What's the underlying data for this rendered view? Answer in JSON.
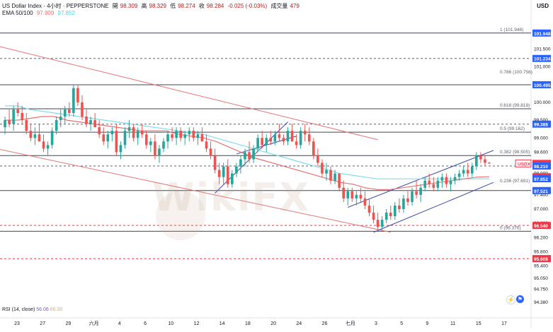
{
  "header": {
    "symbol": "US Dollar Index · 4小时 · PEPPERSTONE",
    "open_label": "開",
    "open": "98.309",
    "high_label": "高",
    "high": "98.329",
    "low_label": "低",
    "low": "98.274",
    "close_label": "收",
    "close": "98.284",
    "change": "-0.025 (-0.03%)",
    "volume_label": "成交量",
    "volume": "479",
    "ema_label": "EMA 50/100",
    "ema50": "97.909",
    "ema100": "97.852"
  },
  "axis": {
    "currency": "USD"
  },
  "rsi": {
    "label": "RSI (14, close)",
    "value": "56.06",
    "sma": "66.00"
  },
  "watermark": "WikiFX",
  "colors": {
    "up": "#26a69a",
    "down": "#ef5350",
    "ema50": "#e57373",
    "ema100": "#80deea",
    "channel_red": "#e57373",
    "channel_blue": "#3949ab",
    "badge_blue": "#2962ff",
    "badge_red": "#f23645",
    "fib_line": "#131722"
  },
  "chart_data": {
    "type": "candlestick",
    "y_axis": {
      "range": [
        94.3,
        102.4
      ],
      "scale": "linear"
    },
    "y_ticks": [
      "101.500",
      "101.000",
      "100.500",
      "100.000",
      "99.500",
      "99.000",
      "98.600",
      "98.000",
      "97.400",
      "97.000",
      "96.600",
      "96.200",
      "95.800",
      "95.400",
      "95.050",
      "94.750",
      "94.380"
    ],
    "x_ticks": [
      "23",
      "27",
      "29",
      "六月",
      "4",
      "6",
      "10",
      "12",
      "14",
      "18",
      "20",
      "24",
      "26",
      "七月",
      "3",
      "5",
      "9",
      "11",
      "15",
      "17"
    ],
    "price_badges": [
      {
        "label": "101.948",
        "value": 101.948,
        "color": "blue"
      },
      {
        "label": "101.234",
        "value": 101.234,
        "color": "blue"
      },
      {
        "label": "100.495",
        "value": 100.495,
        "color": "blue"
      },
      {
        "label": "99.388",
        "value": 99.388,
        "color": "blue"
      },
      {
        "label": "98.284",
        "value": 98.284,
        "color": "red"
      },
      {
        "label": "98.210",
        "value": 98.21,
        "color": "blue"
      },
      {
        "label": "97.909",
        "value": 97.909,
        "color": "red"
      },
      {
        "label": "97.852",
        "value": 97.852,
        "color": "blue"
      },
      {
        "label": "97.521",
        "value": 97.521,
        "color": "blue"
      },
      {
        "label": "96.540",
        "value": 96.54,
        "color": "red"
      },
      {
        "label": "95.608",
        "value": 95.608,
        "color": "red"
      }
    ],
    "symbol_badge": "USDX",
    "fib_levels": [
      {
        "label": "1 (101.948)",
        "value": 101.948
      },
      {
        "label": "0.786 (100.756)",
        "value": 100.756
      },
      {
        "label": "0.618 (99.819)",
        "value": 99.819
      },
      {
        "label": "0.5 (99.162)",
        "value": 99.162
      },
      {
        "label": "0.382 (98.505)",
        "value": 98.505
      },
      {
        "label": "0.236 (97.691)",
        "value": 97.691
      },
      {
        "label": "0 (96.376)",
        "value": 96.376
      }
    ],
    "horizontal_lines": [
      {
        "value": 101.948,
        "style": "solid"
      },
      {
        "value": 101.234,
        "style": "dashed"
      },
      {
        "value": 100.495,
        "style": "solid"
      },
      {
        "value": 99.819,
        "style": "solid"
      },
      {
        "value": 99.388,
        "style": "dashed"
      },
      {
        "value": 99.162,
        "style": "solid"
      },
      {
        "value": 98.505,
        "style": "solid"
      },
      {
        "value": 98.21,
        "style": "dashed"
      },
      {
        "value": 97.521,
        "style": "solid"
      },
      {
        "value": 96.54,
        "style": "dashed_red"
      },
      {
        "value": 96.376,
        "style": "solid"
      },
      {
        "value": 95.608,
        "style": "dashed_red"
      }
    ],
    "ohlc": [
      [
        99.3,
        99.6,
        99.1,
        99.5
      ],
      [
        99.5,
        99.8,
        99.3,
        99.4
      ],
      [
        99.4,
        99.9,
        99.2,
        99.8
      ],
      [
        99.8,
        100.0,
        99.6,
        99.7
      ],
      [
        99.7,
        99.9,
        99.4,
        99.5
      ],
      [
        99.5,
        99.7,
        99.1,
        99.2
      ],
      [
        99.2,
        99.4,
        98.9,
        99.0
      ],
      [
        99.0,
        99.3,
        98.8,
        99.1
      ],
      [
        99.1,
        99.4,
        98.9,
        98.9
      ],
      [
        98.9,
        99.1,
        98.6,
        98.7
      ],
      [
        98.7,
        98.9,
        98.5,
        98.8
      ],
      [
        98.8,
        99.3,
        98.7,
        99.2
      ],
      [
        99.2,
        99.6,
        99.1,
        99.5
      ],
      [
        99.5,
        99.8,
        99.3,
        99.6
      ],
      [
        99.6,
        99.9,
        99.4,
        99.8
      ],
      [
        99.8,
        100.0,
        99.6,
        99.7
      ],
      [
        99.7,
        100.5,
        99.6,
        100.4
      ],
      [
        100.4,
        100.5,
        99.9,
        100.0
      ],
      [
        100.0,
        100.2,
        99.5,
        99.6
      ],
      [
        99.6,
        99.8,
        99.3,
        99.4
      ],
      [
        99.4,
        99.6,
        99.2,
        99.5
      ],
      [
        99.5,
        99.7,
        99.3,
        99.3
      ],
      [
        99.3,
        99.5,
        99.0,
        99.1
      ],
      [
        99.1,
        99.3,
        98.8,
        98.9
      ],
      [
        98.9,
        99.2,
        98.7,
        99.1
      ],
      [
        99.1,
        99.3,
        98.9,
        99.2
      ],
      [
        99.2,
        99.4,
        98.5,
        98.6
      ],
      [
        98.6,
        98.9,
        98.4,
        98.8
      ],
      [
        98.8,
        99.3,
        98.7,
        99.2
      ],
      [
        99.2,
        99.5,
        99.0,
        99.3
      ],
      [
        99.3,
        99.4,
        98.9,
        99.0
      ],
      [
        99.0,
        99.3,
        98.8,
        99.2
      ],
      [
        99.2,
        99.4,
        99.0,
        99.1
      ],
      [
        99.1,
        99.2,
        98.7,
        98.8
      ],
      [
        98.8,
        99.0,
        98.6,
        98.9
      ],
      [
        98.9,
        99.1,
        98.4,
        98.5
      ],
      [
        98.5,
        98.8,
        98.3,
        98.7
      ],
      [
        98.7,
        99.0,
        98.6,
        98.9
      ],
      [
        98.9,
        99.2,
        98.7,
        99.1
      ],
      [
        99.1,
        99.3,
        98.9,
        99.0
      ],
      [
        99.0,
        99.3,
        98.8,
        99.2
      ],
      [
        99.2,
        99.3,
        98.9,
        99.0
      ],
      [
        99.0,
        99.2,
        98.8,
        99.1
      ],
      [
        99.1,
        99.3,
        98.9,
        99.2
      ],
      [
        99.2,
        99.3,
        98.9,
        99.0
      ],
      [
        99.0,
        99.2,
        98.8,
        99.1
      ],
      [
        99.1,
        99.3,
        98.9,
        98.9
      ],
      [
        98.9,
        99.1,
        98.6,
        98.7
      ],
      [
        98.7,
        98.9,
        98.4,
        98.5
      ],
      [
        98.5,
        98.7,
        98.0,
        98.1
      ],
      [
        98.1,
        98.3,
        97.7,
        97.9
      ],
      [
        97.9,
        98.3,
        97.7,
        98.2
      ],
      [
        98.2,
        98.4,
        97.6,
        97.7
      ],
      [
        97.7,
        98.1,
        97.6,
        98.0
      ],
      [
        98.0,
        98.3,
        97.9,
        98.2
      ],
      [
        98.2,
        98.5,
        98.0,
        98.4
      ],
      [
        98.4,
        98.7,
        98.2,
        98.6
      ],
      [
        98.6,
        98.9,
        98.3,
        98.4
      ],
      [
        98.4,
        98.8,
        98.3,
        98.7
      ],
      [
        98.7,
        99.1,
        98.6,
        99.0
      ],
      [
        99.0,
        99.2,
        98.7,
        98.8
      ],
      [
        98.8,
        99.1,
        98.6,
        99.0
      ],
      [
        99.0,
        99.2,
        98.8,
        98.9
      ],
      [
        98.9,
        99.2,
        98.8,
        99.1
      ],
      [
        99.1,
        99.4,
        98.9,
        99.0
      ],
      [
        99.0,
        99.1,
        98.8,
        98.9
      ],
      [
        98.9,
        99.3,
        98.8,
        99.2
      ],
      [
        99.2,
        99.4,
        98.9,
        98.9
      ],
      [
        98.9,
        99.1,
        98.7,
        98.8
      ],
      [
        98.8,
        99.3,
        98.7,
        99.2
      ],
      [
        99.2,
        99.4,
        98.9,
        99.1
      ],
      [
        99.1,
        99.3,
        98.8,
        98.9
      ],
      [
        98.9,
        99.0,
        98.4,
        98.5
      ],
      [
        98.5,
        98.7,
        98.2,
        98.3
      ],
      [
        98.3,
        98.4,
        97.9,
        98.0
      ],
      [
        98.0,
        98.3,
        97.8,
        98.1
      ],
      [
        98.1,
        98.2,
        97.7,
        97.8
      ],
      [
        97.8,
        98.1,
        97.7,
        98.0
      ],
      [
        98.0,
        98.0,
        97.5,
        97.6
      ],
      [
        97.6,
        97.8,
        97.2,
        97.3
      ],
      [
        97.3,
        97.6,
        97.1,
        97.5
      ],
      [
        97.5,
        97.6,
        97.2,
        97.3
      ],
      [
        97.3,
        97.5,
        97.1,
        97.4
      ],
      [
        97.4,
        97.6,
        97.2,
        97.3
      ],
      [
        97.3,
        97.5,
        97.0,
        97.1
      ],
      [
        97.1,
        97.3,
        96.8,
        96.9
      ],
      [
        96.9,
        97.1,
        96.6,
        96.7
      ],
      [
        96.7,
        96.9,
        96.4,
        96.5
      ],
      [
        96.5,
        96.8,
        96.4,
        96.7
      ],
      [
        96.7,
        97.0,
        96.6,
        96.9
      ],
      [
        96.9,
        97.1,
        96.7,
        96.8
      ],
      [
        96.8,
        97.2,
        96.7,
        97.1
      ],
      [
        97.1,
        97.3,
        96.9,
        97.0
      ],
      [
        97.0,
        97.4,
        96.9,
        97.3
      ],
      [
        97.3,
        97.5,
        97.1,
        97.2
      ],
      [
        97.2,
        97.6,
        97.1,
        97.5
      ],
      [
        97.5,
        97.8,
        97.3,
        97.4
      ],
      [
        97.4,
        97.7,
        97.2,
        97.6
      ],
      [
        97.6,
        97.9,
        97.5,
        97.8
      ],
      [
        97.8,
        98.0,
        97.6,
        97.7
      ],
      [
        97.7,
        97.9,
        97.5,
        97.6
      ],
      [
        97.6,
        97.9,
        97.5,
        97.8
      ],
      [
        97.8,
        98.0,
        97.6,
        97.9
      ],
      [
        97.9,
        98.0,
        97.6,
        97.7
      ],
      [
        97.7,
        97.9,
        97.5,
        97.8
      ],
      [
        97.8,
        98.0,
        97.7,
        97.9
      ],
      [
        97.9,
        98.1,
        97.8,
        98.0
      ],
      [
        98.0,
        98.2,
        97.9,
        98.1
      ],
      [
        98.1,
        98.3,
        97.9,
        98.0
      ],
      [
        98.0,
        98.3,
        97.9,
        98.2
      ],
      [
        98.2,
        98.6,
        98.1,
        98.5
      ],
      [
        98.5,
        98.6,
        98.3,
        98.4
      ],
      [
        98.4,
        98.5,
        98.2,
        98.3
      ],
      [
        98.3,
        98.33,
        98.27,
        98.284
      ]
    ],
    "ema50": [
      99.5,
      99.5,
      99.55,
      99.6,
      99.6,
      99.5,
      99.45,
      99.4,
      99.35,
      99.3,
      99.25,
      99.2,
      99.2,
      99.2,
      99.1,
      99.05,
      99.0,
      98.9,
      98.75,
      98.6,
      98.45,
      98.35,
      98.25,
      98.15,
      98.05,
      97.95,
      97.85,
      97.75,
      97.7,
      97.6,
      97.55,
      97.55,
      97.6,
      97.65,
      97.7,
      97.75,
      97.8,
      97.85,
      97.9,
      97.909
    ],
    "ema100": [
      99.9,
      99.9,
      99.8,
      99.75,
      99.7,
      99.65,
      99.6,
      99.55,
      99.5,
      99.45,
      99.4,
      99.35,
      99.3,
      99.25,
      99.2,
      99.15,
      99.1,
      99.0,
      98.9,
      98.8,
      98.7,
      98.6,
      98.5,
      98.4,
      98.3,
      98.2,
      98.1,
      98.0,
      97.95,
      97.9,
      97.85,
      97.85,
      97.85,
      97.85,
      97.85,
      97.85,
      97.85,
      97.85,
      97.85,
      97.852
    ]
  }
}
